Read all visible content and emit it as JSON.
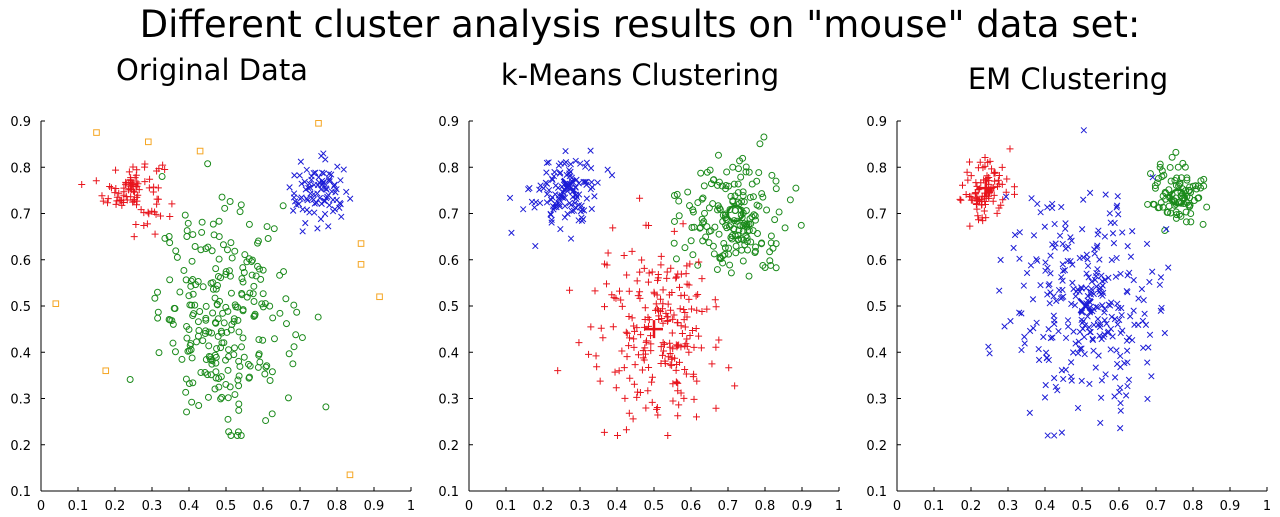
{
  "title": "Different cluster analysis results on \"mouse\" data set:",
  "colors": {
    "red": "#e8141c",
    "green": "#1b8a1b",
    "blue": "#1c1cd6",
    "orange": "#f5a623",
    "axis": "#000000"
  },
  "axes_common": {
    "xlim": [
      0,
      1
    ],
    "ylim": [
      0.1,
      0.9
    ],
    "xticks": [
      0,
      0.1,
      0.2,
      0.3,
      0.4,
      0.5,
      0.6,
      0.7,
      0.8,
      0.9,
      1
    ],
    "xtick_labels": [
      "0",
      "0.1",
      "0.2",
      "0.3",
      "0.4",
      "0.5",
      "0.6",
      "0.7",
      "0.8",
      "0.9",
      "1"
    ],
    "yticks": [
      0.1,
      0.2,
      0.3,
      0.4,
      0.5,
      0.6,
      0.7,
      0.8,
      0.9
    ],
    "ytick_labels": [
      "0.1",
      "0.2",
      "0.3",
      "0.4",
      "0.5",
      "0.6",
      "0.7",
      "0.8",
      "0.9"
    ],
    "grid": false
  },
  "chart_data": [
    {
      "type": "scatter",
      "title": "Original Data",
      "xlim": [
        0,
        1
      ],
      "ylim": [
        0.1,
        0.9
      ],
      "series": [
        {
          "region": "left-ear",
          "marker": "plus",
          "color": "#e8141c",
          "center": [
            0.25,
            0.75
          ],
          "spread": [
            0.04,
            0.035
          ],
          "count": 90
        },
        {
          "region": "head",
          "marker": "circle",
          "color": "#1b8a1b",
          "center": [
            0.5,
            0.48
          ],
          "spread": [
            0.09,
            0.11
          ],
          "count": 260
        },
        {
          "region": "right-ear",
          "marker": "x",
          "color": "#1c1cd6",
          "center": [
            0.75,
            0.74
          ],
          "spread": [
            0.04,
            0.035
          ],
          "count": 90
        },
        {
          "region": "noise",
          "marker": "square",
          "color": "#f5a623",
          "points": [
            [
              0.15,
              0.875
            ],
            [
              0.29,
              0.855
            ],
            [
              0.43,
              0.835
            ],
            [
              0.75,
              0.895
            ],
            [
              0.865,
              0.635
            ],
            [
              0.865,
              0.59
            ],
            [
              0.915,
              0.52
            ],
            [
              0.04,
              0.505
            ],
            [
              0.175,
              0.36
            ],
            [
              0.835,
              0.135
            ]
          ]
        }
      ]
    },
    {
      "type": "scatter",
      "title": "k-Means Clustering",
      "xlim": [
        0,
        1
      ],
      "ylim": [
        0.1,
        0.9
      ],
      "series": [
        {
          "cluster": 1,
          "marker": "x",
          "color": "#1c1cd6",
          "center": [
            0.26,
            0.75
          ],
          "spread": [
            0.045,
            0.04
          ],
          "count": 130
        },
        {
          "cluster": 2,
          "marker": "circle",
          "color": "#1b8a1b",
          "center": [
            0.71,
            0.69
          ],
          "spread": [
            0.07,
            0.065
          ],
          "count": 190
        },
        {
          "cluster": 3,
          "marker": "plus",
          "color": "#e8141c",
          "center": [
            0.5,
            0.45
          ],
          "spread": [
            0.085,
            0.09
          ],
          "count": 230
        }
      ],
      "centroids": [
        {
          "x": 0.27,
          "y": 0.76,
          "marker": "x",
          "color": "#1c1cd6"
        },
        {
          "x": 0.72,
          "y": 0.7,
          "marker": "circle",
          "color": "#1b8a1b"
        },
        {
          "x": 0.5,
          "y": 0.45,
          "marker": "plus",
          "color": "#e8141c"
        }
      ]
    },
    {
      "type": "scatter",
      "title": "EM Clustering",
      "xlim": [
        0,
        1
      ],
      "ylim": [
        0.1,
        0.9
      ],
      "series": [
        {
          "cluster": 1,
          "marker": "plus",
          "color": "#e8141c",
          "center": [
            0.24,
            0.75
          ],
          "spread": [
            0.035,
            0.035
          ],
          "count": 95
        },
        {
          "cluster": 2,
          "marker": "circle",
          "color": "#1b8a1b",
          "center": [
            0.76,
            0.74
          ],
          "spread": [
            0.035,
            0.035
          ],
          "count": 95
        },
        {
          "cluster": 3,
          "marker": "x",
          "color": "#1c1cd6",
          "center": [
            0.51,
            0.5
          ],
          "spread": [
            0.1,
            0.12
          ],
          "count": 300
        }
      ],
      "centroids": [
        {
          "x": 0.24,
          "y": 0.755,
          "marker": "plus",
          "color": "#e8141c"
        },
        {
          "x": 0.76,
          "y": 0.735,
          "marker": "circle",
          "color": "#1b8a1b"
        },
        {
          "x": 0.51,
          "y": 0.5,
          "marker": "x",
          "color": "#1c1cd6"
        }
      ]
    }
  ]
}
